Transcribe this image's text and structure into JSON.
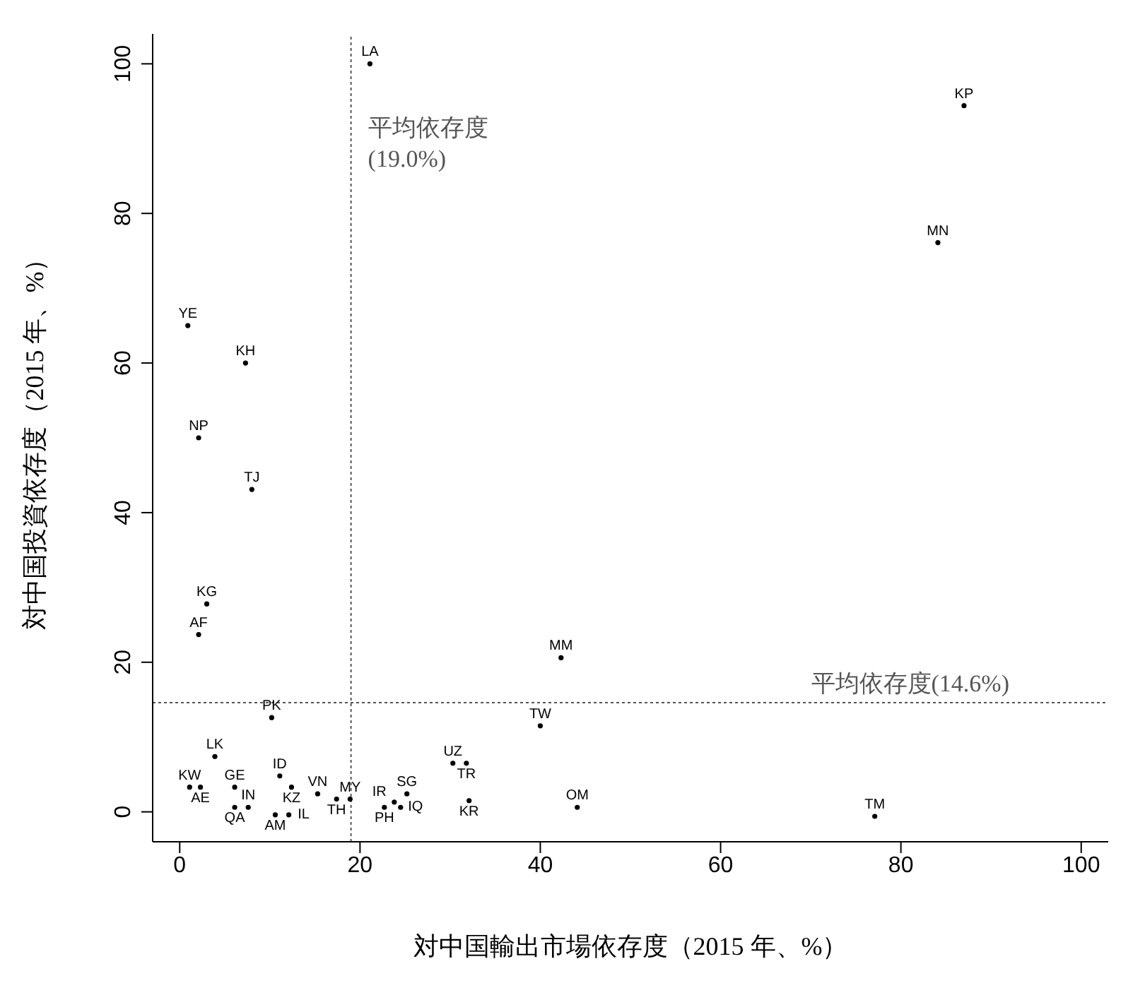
{
  "chart_data": {
    "type": "scatter",
    "marker": "circle",
    "xlabel": "対中国輸出市場依存度（2015 年、%）",
    "ylabel": "対中国投資依存度（2015 年、%）",
    "xlim": [
      -3,
      103
    ],
    "ylim": [
      -4,
      104
    ],
    "xticks": [
      0,
      20,
      40,
      60,
      80,
      100
    ],
    "yticks": [
      0,
      20,
      40,
      60,
      80,
      100
    ],
    "ref_lines": [
      {
        "axis": "x",
        "value": 19.0,
        "label": "平均依存度\n(19.0%)",
        "color": "#555555",
        "line_style": "dotted"
      },
      {
        "axis": "y",
        "value": 14.6,
        "label": "平均依存度(14.6%)",
        "color": "#555555",
        "line_style": "dotted"
      }
    ],
    "series": [
      {
        "name": "LA",
        "color": "#000000",
        "x": [
          21.1
        ],
        "values": [
          100
        ]
      },
      {
        "name": "KP",
        "color": "#000000",
        "x": [
          87
        ],
        "values": [
          94.4
        ]
      },
      {
        "name": "MN",
        "color": "#000000",
        "x": [
          84.1
        ],
        "values": [
          76.1
        ]
      },
      {
        "name": "YE",
        "color": "#000000",
        "x": [
          0.9
        ],
        "values": [
          65
        ]
      },
      {
        "name": "KH",
        "color": "#000000",
        "x": [
          7.3
        ],
        "values": [
          60
        ]
      },
      {
        "name": "NP",
        "color": "#000000",
        "x": [
          2.1
        ],
        "values": [
          50
        ]
      },
      {
        "name": "TJ",
        "color": "#000000",
        "x": [
          8
        ],
        "values": [
          43.1
        ]
      },
      {
        "name": "KG",
        "color": "#000000",
        "x": [
          3
        ],
        "values": [
          27.8
        ]
      },
      {
        "name": "AF",
        "color": "#000000",
        "x": [
          2.1
        ],
        "values": [
          23.7
        ]
      },
      {
        "name": "MM",
        "color": "#000000",
        "x": [
          42.3
        ],
        "values": [
          20.6
        ]
      },
      {
        "name": "TW",
        "color": "#000000",
        "x": [
          40
        ],
        "values": [
          11.5
        ]
      },
      {
        "name": "PK",
        "color": "#000000",
        "x": [
          10.2
        ],
        "values": [
          12.6
        ]
      },
      {
        "name": "LK",
        "color": "#000000",
        "x": [
          3.9
        ],
        "values": [
          7.4
        ]
      },
      {
        "name": "UZ",
        "color": "#000000",
        "x": [
          30.3
        ],
        "values": [
          6.5
        ]
      },
      {
        "name": "TR",
        "color": "#000000",
        "x": [
          31.8
        ],
        "values": [
          6.5
        ]
      },
      {
        "name": "KR",
        "color": "#000000",
        "x": [
          32.1
        ],
        "values": [
          1.5
        ]
      },
      {
        "name": "OM",
        "color": "#000000",
        "x": [
          44.1
        ],
        "values": [
          0.6
        ]
      },
      {
        "name": "TM",
        "color": "#000000",
        "x": [
          77.1
        ],
        "values": [
          -0.6
        ]
      },
      {
        "name": "SG",
        "color": "#000000",
        "x": [
          25.2
        ],
        "values": [
          2.4
        ]
      },
      {
        "name": "PH",
        "color": "#000000",
        "x": [
          22.7
        ],
        "values": [
          0.6
        ]
      },
      {
        "name": "IR",
        "color": "#000000",
        "x": [
          23.8
        ],
        "values": [
          1.3
        ]
      },
      {
        "name": "IQ",
        "color": "#000000",
        "x": [
          24.5
        ],
        "values": [
          0.6
        ]
      },
      {
        "name": "ID",
        "color": "#000000",
        "x": [
          11.1
        ],
        "values": [
          4.8
        ]
      },
      {
        "name": "KZ",
        "color": "#000000",
        "x": [
          12.4
        ],
        "values": [
          3.3
        ]
      },
      {
        "name": "VN",
        "color": "#000000",
        "x": [
          15.3
        ],
        "values": [
          2.4
        ]
      },
      {
        "name": "TH",
        "color": "#000000",
        "x": [
          17.4
        ],
        "values": [
          1.7
        ]
      },
      {
        "name": "MY",
        "color": "#000000",
        "x": [
          18.9
        ],
        "values": [
          1.7
        ]
      },
      {
        "name": "QA",
        "color": "#000000",
        "x": [
          6.1
        ],
        "values": [
          0.6
        ]
      },
      {
        "name": "IN",
        "color": "#000000",
        "x": [
          7.6
        ],
        "values": [
          0.6
        ]
      },
      {
        "name": "AM",
        "color": "#000000",
        "x": [
          10.6
        ],
        "values": [
          -0.4
        ]
      },
      {
        "name": "IL",
        "color": "#000000",
        "x": [
          12.1
        ],
        "values": [
          -0.4
        ]
      },
      {
        "name": "KW",
        "color": "#000000",
        "x": [
          1.1
        ],
        "values": [
          3.3
        ]
      },
      {
        "name": "AE",
        "color": "#000000",
        "x": [
          2.3
        ],
        "values": [
          3.3
        ]
      },
      {
        "name": "GE",
        "color": "#000000",
        "x": [
          6.1
        ],
        "values": [
          3.3
        ]
      }
    ]
  }
}
